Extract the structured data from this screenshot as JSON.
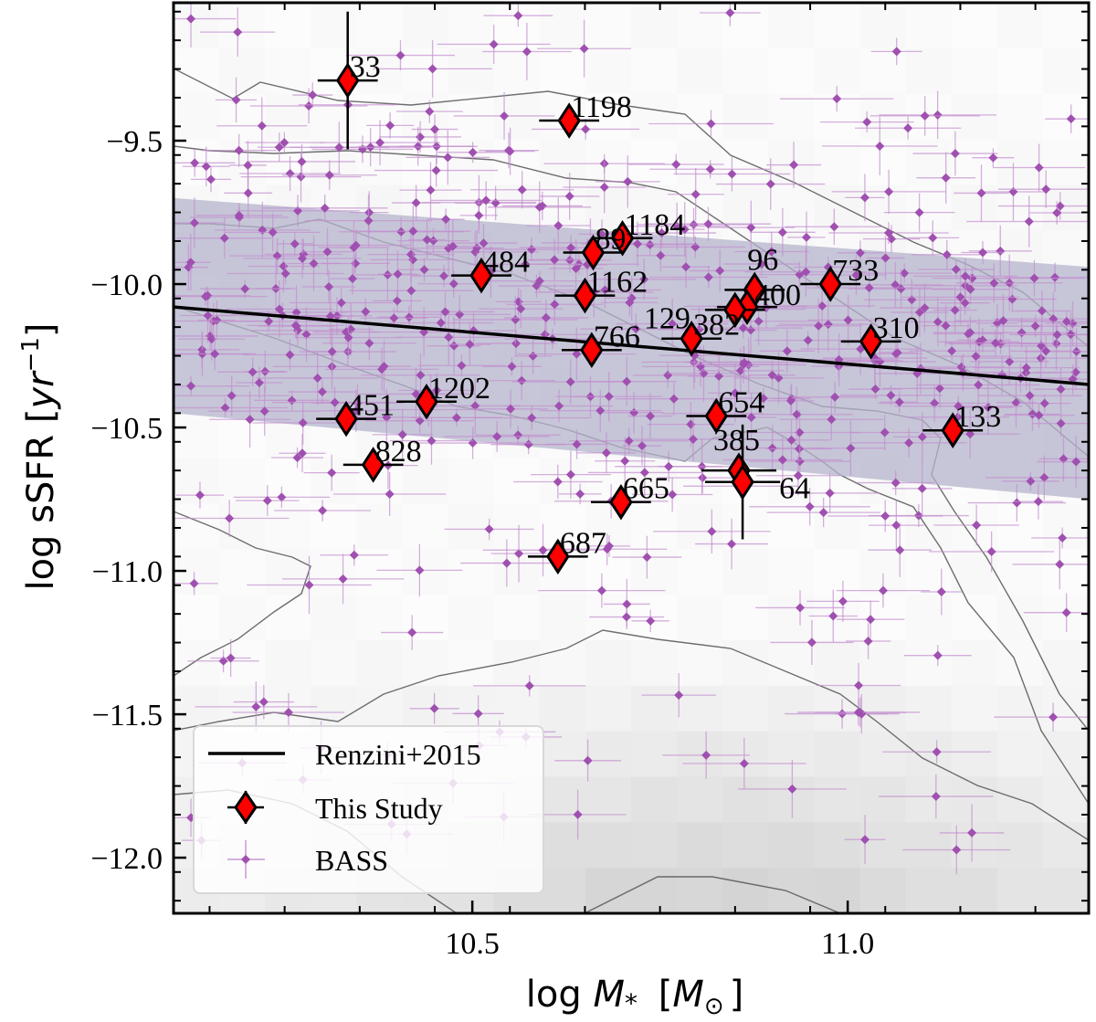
{
  "chart_data": {
    "type": "scatter",
    "title": "",
    "xlabel": "log M* [M⊙]",
    "ylabel": "log sSFR [yr⁻¹]",
    "xlim": [
      10.102,
      11.321
    ],
    "ylim": [
      -12.194,
      -9.019
    ],
    "xticks": [
      10.5,
      11.0
    ],
    "xtick_labels": [
      "10.5",
      "11.0"
    ],
    "yticks": [
      -9.5,
      -10.0,
      -10.5,
      -11.0,
      -11.5,
      -12.0
    ],
    "ytick_labels": [
      "−9.5",
      "−10.0",
      "−10.5",
      "−11.0",
      "−11.5",
      "−12.0"
    ],
    "grid": false,
    "legend_position": "lower left",
    "legend": [
      {
        "label": "Renzini+2015",
        "marker": "line"
      },
      {
        "label": "This Study",
        "marker": "red-diamond-errorbar"
      },
      {
        "label": "BASS",
        "marker": "purple-dot-errorbar"
      }
    ],
    "series": [
      {
        "name": "Renzini+2015",
        "kind": "line",
        "x": [
          10.102,
          11.321
        ],
        "y": [
          -10.08,
          -10.35
        ],
        "band_upper": [
          -9.7,
          -9.94
        ],
        "band_lower": [
          -10.45,
          -10.75
        ],
        "color": "#000000",
        "band_color": "#b4b4cc"
      },
      {
        "name": "This Study",
        "kind": "scatter",
        "color": "#ff0000",
        "points": [
          {
            "id": "33",
            "x": 10.334,
            "y": -9.29,
            "xerr": 0.04,
            "yerr": 0.24
          },
          {
            "id": "1198",
            "x": 10.629,
            "y": -9.43,
            "xerr": 0.04,
            "yerr": 0.03
          },
          {
            "id": "1184",
            "x": 10.7,
            "y": -9.84,
            "xerr": 0.04,
            "yerr": 0.03
          },
          {
            "id": "89",
            "x": 10.661,
            "y": -9.89,
            "xerr": 0.04,
            "yerr": 0.03
          },
          {
            "id": "484",
            "x": 10.512,
            "y": -9.97,
            "xerr": 0.04,
            "yerr": 0.03
          },
          {
            "id": "1162",
            "x": 10.65,
            "y": -10.04,
            "xerr": 0.04,
            "yerr": 0.03
          },
          {
            "id": "96",
            "x": 10.876,
            "y": -10.02,
            "xerr": 0.04,
            "yerr": 0.03
          },
          {
            "id": "400",
            "x": 10.866,
            "y": -10.08,
            "xerr": 0.04,
            "yerr": 0.03
          },
          {
            "id": "129",
            "x": 10.85,
            "y": -10.09,
            "xerr": 0.04,
            "yerr": 0.03
          },
          {
            "id": "733",
            "x": 10.977,
            "y": -10.0,
            "xerr": 0.04,
            "yerr": 0.03
          },
          {
            "id": "310",
            "x": 11.031,
            "y": -10.2,
            "xerr": 0.04,
            "yerr": 0.03
          },
          {
            "id": "382",
            "x": 10.792,
            "y": -10.19,
            "xerr": 0.04,
            "yerr": 0.03
          },
          {
            "id": "766",
            "x": 10.659,
            "y": -10.23,
            "xerr": 0.04,
            "yerr": 0.03
          },
          {
            "id": "1202",
            "x": 10.439,
            "y": -10.41,
            "xerr": 0.04,
            "yerr": 0.03
          },
          {
            "id": "451",
            "x": 10.332,
            "y": -10.47,
            "xerr": 0.04,
            "yerr": 0.03
          },
          {
            "id": "828",
            "x": 10.368,
            "y": -10.63,
            "xerr": 0.04,
            "yerr": 0.03
          },
          {
            "id": "654",
            "x": 10.825,
            "y": -10.46,
            "xerr": 0.04,
            "yerr": 0.03
          },
          {
            "id": "133",
            "x": 11.14,
            "y": -10.51,
            "xerr": 0.04,
            "yerr": 0.03
          },
          {
            "id": "385",
            "x": 10.855,
            "y": -10.65,
            "xerr": 0.05,
            "yerr": 0.03
          },
          {
            "id": "64",
            "x": 10.86,
            "y": -10.69,
            "xerr": 0.05,
            "yerr": 0.2
          },
          {
            "id": "665",
            "x": 10.698,
            "y": -10.76,
            "xerr": 0.04,
            "yerr": 0.03
          },
          {
            "id": "687",
            "x": 10.614,
            "y": -10.95,
            "xerr": 0.04,
            "yerr": 0.03
          }
        ]
      },
      {
        "name": "BASS",
        "kind": "scatter",
        "color": "#a050b0",
        "note": "~500 background points with error bars, density highest around log M* 10.5-11.0, log sSFR -9.6 to -10.8"
      }
    ],
    "background": "grey 2D density histogram with grey contour lines"
  },
  "labels": {
    "xlabel_prefix": "log",
    "xlabel_M": "M",
    "xlabel_sub": "*",
    "xlabel_unit_open": "[",
    "xlabel_unit_M": "M",
    "xlabel_unit_sub": "⊙",
    "xlabel_unit_close": "]",
    "ylabel_main": "log sSFR [",
    "ylabel_yr": "yr",
    "ylabel_exp": "−1",
    "ylabel_close": "]"
  }
}
